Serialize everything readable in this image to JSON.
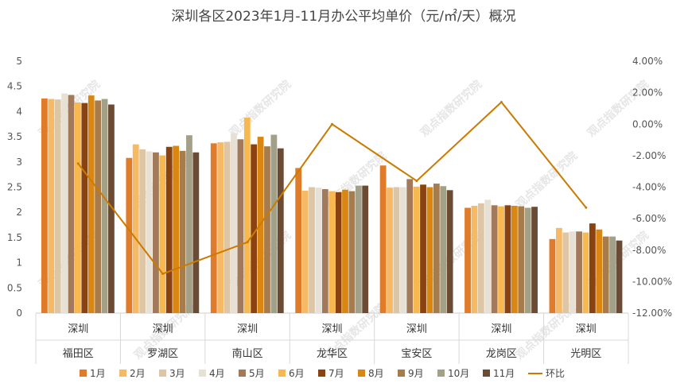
{
  "chart_data": {
    "type": "bar",
    "title": "深圳各区2023年1月-11月办公平均单价（元/㎡/天）概况",
    "group_label": "深圳",
    "categories": [
      "福田区",
      "罗湖区",
      "南山区",
      "龙华区",
      "宝安区",
      "龙岗区",
      "光明区"
    ],
    "ylim": [
      0,
      5
    ],
    "y_ticks": [
      "0",
      "0.5",
      "1",
      "1.5",
      "2",
      "2.5",
      "3",
      "3.5",
      "4",
      "4.5",
      "5"
    ],
    "y2lim": [
      -12,
      4
    ],
    "y2_ticks": [
      "-12.00%",
      "-10.00%",
      "-8.00%",
      "-6.00%",
      "-4.00%",
      "-2.00%",
      "0.00%",
      "2.00%",
      "4.00%"
    ],
    "series": [
      {
        "name": "1月",
        "color": "#E07B2A",
        "values": [
          4.26,
          3.08,
          3.37,
          2.88,
          2.93,
          2.09,
          1.47
        ]
      },
      {
        "name": "2月",
        "color": "#F6BA67",
        "values": [
          4.25,
          3.35,
          3.39,
          2.43,
          2.49,
          2.13,
          1.69
        ]
      },
      {
        "name": "3月",
        "color": "#DCC6A5",
        "values": [
          4.24,
          3.25,
          3.4,
          2.5,
          2.5,
          2.18,
          1.6
        ]
      },
      {
        "name": "4月",
        "color": "#E6E1D4",
        "values": [
          4.36,
          3.21,
          3.57,
          2.49,
          2.5,
          2.25,
          1.62
        ]
      },
      {
        "name": "5月",
        "color": "#A2795A",
        "values": [
          4.33,
          3.19,
          3.45,
          2.46,
          2.66,
          2.14,
          1.62
        ]
      },
      {
        "name": "6月",
        "color": "#F7B84F",
        "values": [
          4.18,
          3.13,
          3.88,
          2.42,
          2.51,
          2.12,
          1.6
        ]
      },
      {
        "name": "7月",
        "color": "#8A4210",
        "values": [
          4.17,
          3.3,
          3.35,
          2.4,
          2.55,
          2.14,
          1.78
        ]
      },
      {
        "name": "8月",
        "color": "#D98710",
        "values": [
          4.32,
          3.32,
          3.5,
          2.45,
          2.5,
          2.13,
          1.66
        ]
      },
      {
        "name": "9月",
        "color": "#A77C4C",
        "values": [
          4.22,
          3.22,
          3.31,
          2.42,
          2.57,
          2.12,
          1.52
        ]
      },
      {
        "name": "10月",
        "color": "#A2A087",
        "values": [
          4.25,
          3.53,
          3.54,
          2.53,
          2.52,
          2.09,
          1.52
        ]
      },
      {
        "name": "11月",
        "color": "#6B4B34",
        "values": [
          4.14,
          3.19,
          3.27,
          2.53,
          2.44,
          2.11,
          1.44
        ]
      }
    ],
    "line_series": {
      "name": "环比",
      "color": "#CC7A00",
      "values": [
        -2.5,
        -9.5,
        -7.5,
        0.0,
        -3.6,
        1.4,
        -5.3
      ]
    },
    "watermark": "观点指数研究院",
    "grid": false,
    "legend_position": "bottom"
  }
}
